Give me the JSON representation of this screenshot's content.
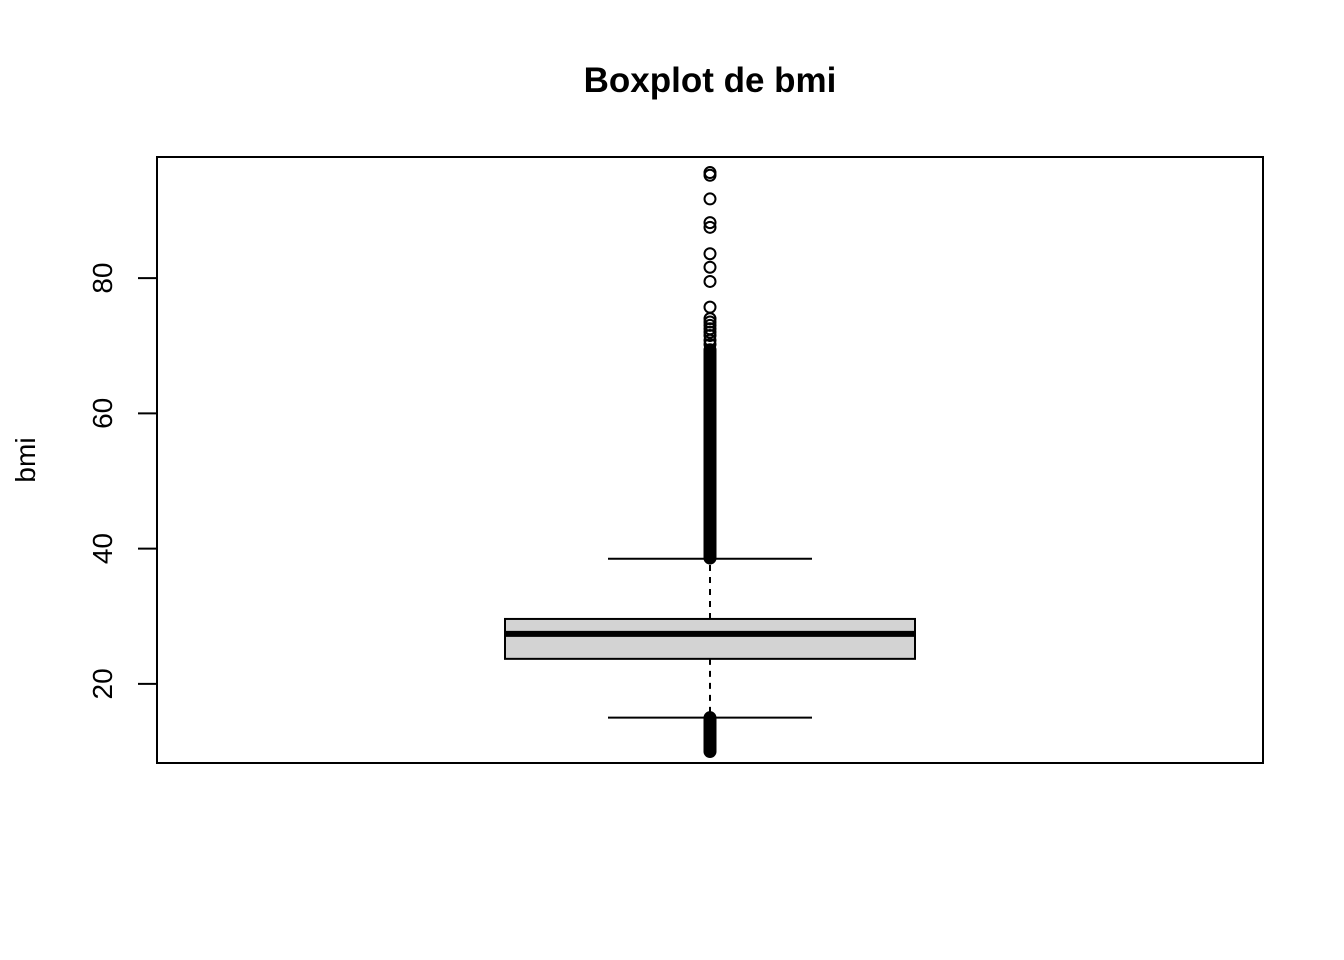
{
  "chart_data": {
    "type": "boxplot",
    "title": "Boxplot de bmi",
    "xlabel": "",
    "ylabel": "bmi",
    "ylim": [
      8.3,
      97.9
    ],
    "yticks": [
      20,
      40,
      60,
      80
    ],
    "box": {
      "lower_whisker": 15.0,
      "q1": 23.7,
      "median": 27.4,
      "q3": 29.6,
      "upper_whisker": 38.5
    },
    "outliers_low_range": [
      10.0,
      15.0
    ],
    "outliers_high_dense_range": [
      38.6,
      69.5
    ],
    "outliers_high": [
      70.2,
      70.8,
      71.5,
      72.0,
      72.5,
      73.0,
      73.5,
      74.0,
      75.7,
      79.5,
      81.6,
      83.6,
      87.5,
      88.2,
      91.7,
      95.2,
      95.6
    ],
    "colors": {
      "box_fill": "#d3d3d3",
      "stroke": "#000000"
    },
    "grid": false
  }
}
